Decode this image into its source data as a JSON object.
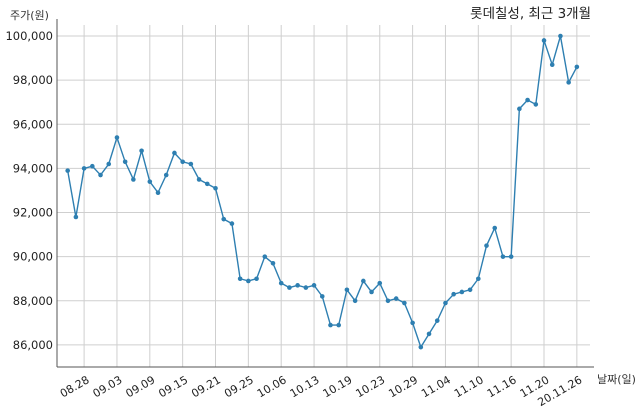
{
  "chart_data": {
    "type": "line",
    "title": "롯데칠성, 최근 3개월",
    "xlabel": "날짜(일)",
    "ylabel": "주가(원)",
    "ylim": [
      85000,
      100500
    ],
    "yticks": [
      "86,000",
      "88,000",
      "90,000",
      "92,000",
      "94,000",
      "96,000",
      "98,000",
      "100,000"
    ],
    "ytick_values": [
      86000,
      88000,
      90000,
      92000,
      94000,
      96000,
      98000,
      100000
    ],
    "xticks": [
      "08.28",
      "09.03",
      "09.09",
      "09.15",
      "09.21",
      "09.25",
      "10.06",
      "10.13",
      "10.19",
      "10.23",
      "10.29",
      "11.04",
      "11.10",
      "11.16",
      "11.20",
      "20.11.26"
    ],
    "xtick_positions": [
      2,
      6,
      10,
      14,
      18,
      22,
      26,
      30,
      34,
      38,
      42,
      46,
      50,
      54,
      58,
      62
    ],
    "grid": true,
    "colors": {
      "line": "#2e7fb1",
      "grid": "#cfcfcf"
    },
    "x": [
      0,
      1,
      2,
      3,
      4,
      5,
      6,
      7,
      8,
      9,
      10,
      11,
      12,
      13,
      14,
      15,
      16,
      17,
      18,
      19,
      20,
      21,
      22,
      23,
      24,
      25,
      26,
      27,
      28,
      29,
      30,
      31,
      32,
      33,
      34,
      35,
      36,
      37,
      38,
      39,
      40,
      41,
      42,
      43,
      44,
      45,
      46,
      47,
      48,
      49,
      50,
      51,
      52,
      53,
      54,
      55,
      56,
      57,
      58,
      59,
      60,
      61,
      62
    ],
    "values": [
      93900,
      91800,
      94000,
      94100,
      93700,
      94200,
      95400,
      94300,
      93500,
      94800,
      93400,
      92900,
      93700,
      94700,
      94300,
      94200,
      93500,
      93300,
      93100,
      91700,
      91500,
      89000,
      88900,
      89000,
      90000,
      89700,
      88800,
      88600,
      88700,
      88600,
      88700,
      88200,
      86900,
      86900,
      88500,
      88000,
      88900,
      88400,
      88800,
      88000,
      88100,
      87900,
      87000,
      85900,
      86500,
      87100,
      87900,
      88300,
      88400,
      88500,
      89000,
      90500,
      91300,
      90000,
      90000,
      96700,
      97100,
      96900,
      99800,
      98700,
      100000,
      97900,
      98600
    ]
  }
}
